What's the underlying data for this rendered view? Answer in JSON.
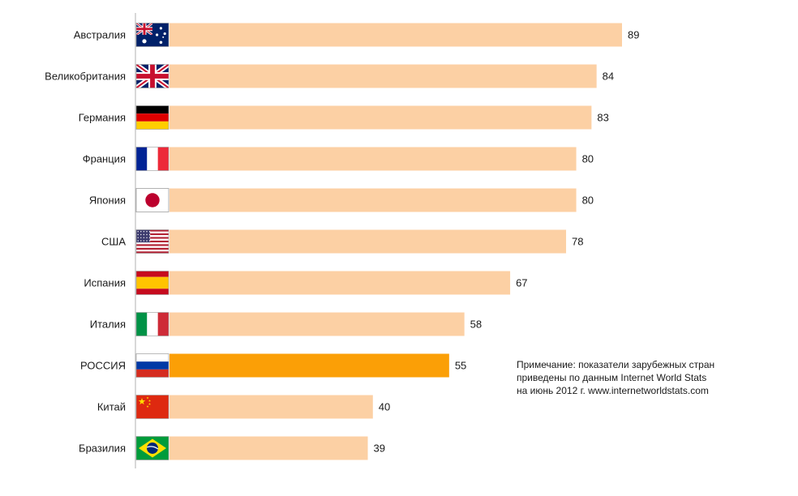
{
  "chart_data": {
    "type": "bar",
    "orientation": "horizontal",
    "title": "",
    "xlabel": "",
    "ylabel": "",
    "xlim": [
      0,
      100
    ],
    "grid": false,
    "legend": "none",
    "categories": [
      "Австралия",
      "Великобритания",
      "Германия",
      "Франция",
      "Япония",
      "США",
      "Испания",
      "Италия",
      "РОССИЯ",
      "Китай",
      "Бразилия"
    ],
    "values": [
      89,
      84,
      83,
      80,
      80,
      78,
      67,
      58,
      55,
      40,
      39
    ],
    "flags": [
      "australia-flag-icon",
      "uk-flag-icon",
      "germany-flag-icon",
      "france-flag-icon",
      "japan-flag-icon",
      "usa-flag-icon",
      "spain-flag-icon",
      "italy-flag-icon",
      "russia-flag-icon",
      "china-flag-icon",
      "brazil-flag-icon"
    ],
    "highlight_index": 8,
    "colors": {
      "bar": "#fcd0a4",
      "highlight": "#fb9f06",
      "axis": "#b0b0b0"
    }
  },
  "note": {
    "lines": [
      "Примечание: показатели зарубежных стран",
      "приведены по данным Internet World Stats",
      "на июнь 2012 г. www.internetworldstats.com"
    ]
  }
}
